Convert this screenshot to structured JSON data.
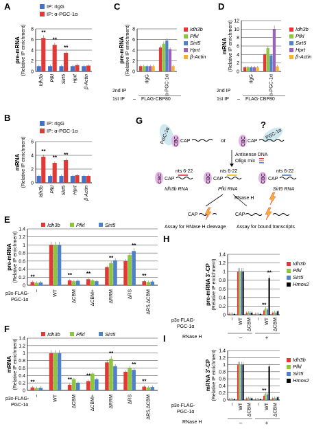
{
  "colors": {
    "rIgG": "#4472c4",
    "PGC": "#e03a36",
    "Idh3b": "#e03a36",
    "Pfkl": "#8cc63f",
    "Sirt5": "#4f81c7",
    "Hprt": "#9b63b5",
    "bActin": "#f2b133",
    "Hmox2": "#000000"
  },
  "legends": {
    "ab": [
      "IP: rIgG",
      "IP: α-PGC-1α"
    ],
    "ef": [
      "Idh3b",
      "Pfkl",
      "Sirt5"
    ],
    "cd": [
      "Idh3b",
      "Pfkl",
      "Sirt5",
      "Hprt",
      "β-Actin"
    ],
    "hi": [
      "Idh3b",
      "Pfkl",
      "Sirt5",
      "Hmox2"
    ]
  },
  "labels": {
    "ab_genes": [
      "Idh3b",
      "Pfkl",
      "Sirt5",
      "Hprt",
      "β-Actin"
    ],
    "p3x": "p3x-FLAG-",
    "pgc": "PGC-1α",
    "ef_conditions": [
      "–",
      "WT",
      "ΔCBM",
      "ΔCBM+",
      "ΔRRM",
      "ΔRS",
      "ΔRS,ΔCBM"
    ],
    "hi_conditions": [
      "–",
      "WT",
      "ΔCBM",
      "–",
      "WT",
      "ΔCBM"
    ],
    "rnaseh": "RNase H",
    "rnaseh_signs": [
      "–",
      "+"
    ],
    "second_ip": "2nd IP",
    "first_ip": "1st IP",
    "rigg": "rIgG",
    "apgc": "α-PGC-1α",
    "dash": "–",
    "flag": "FLAG-CBP80"
  },
  "diagram": {
    "letter": "G",
    "pgc": "PGC-1α",
    "cbc": "CBC",
    "cap": "CAP",
    "or": "or",
    "q": "?",
    "antisense": "Antisense DNA",
    "oligo": "Oligo mix",
    "nts": "nts 6-22",
    "rna1": "Idh3b RNA",
    "rna2": "Pfkl RNA",
    "rna3": "Sirt5 RNA",
    "rnaseh": "RNase H",
    "assay1": "Assay for RNase H cleavage",
    "assay2": "Assay for bound transcripts"
  },
  "chart_data": [
    {
      "panel": "A",
      "type": "bar",
      "ylabel": "pre-mRNA",
      "ylabel2": "(Relative IP enrichment)",
      "ylim": [
        0,
        8
      ],
      "yticks": [
        0,
        2,
        4,
        6,
        8
      ],
      "categories": [
        "Idh3b",
        "Pfkl",
        "Sirt5",
        "Hprt",
        "β-Actin"
      ],
      "series": [
        {
          "name": "IP: rIgG",
          "values": [
            1,
            1,
            1,
            1,
            1
          ]
        },
        {
          "name": "IP: α-PGC-1α",
          "values": [
            6.3,
            5.0,
            3.5,
            1.2,
            1.1
          ]
        }
      ],
      "annotations": [
        "**",
        "**",
        "**"
      ]
    },
    {
      "panel": "B",
      "type": "bar",
      "ylabel": "mRNA",
      "ylabel2": "(Relative IP enrichment)",
      "ylim": [
        0,
        6
      ],
      "yticks": [
        0,
        2,
        4,
        6
      ],
      "categories": [
        "Idh3b",
        "Pfkl",
        "Sirt5",
        "Hprt",
        "β-Actin"
      ],
      "series": [
        {
          "name": "IP: rIgG",
          "values": [
            1,
            1,
            1,
            1,
            1
          ]
        },
        {
          "name": "IP: α-PGC-1α",
          "values": [
            3.8,
            2.9,
            3.3,
            1.1,
            1.0
          ]
        }
      ],
      "annotations": [
        "**",
        "**",
        "**"
      ]
    },
    {
      "panel": "C",
      "type": "bar",
      "ylabel": "pre-mRNA",
      "ylabel2": "(Relative IP enrichment)",
      "ylim": [
        0,
        8
      ],
      "yticks": [
        0,
        2,
        4,
        6,
        8
      ],
      "categories": [
        "rIgG",
        "α-PGC-1α"
      ],
      "series": [
        {
          "name": "Idh3b",
          "values": [
            1,
            4.5
          ]
        },
        {
          "name": "Pfkl",
          "values": [
            1,
            5.2
          ]
        },
        {
          "name": "Sirt5",
          "values": [
            1,
            5.8
          ]
        },
        {
          "name": "Hprt",
          "values": [
            1,
            4.2
          ]
        },
        {
          "name": "β-Actin",
          "values": [
            1,
            1.0
          ]
        }
      ]
    },
    {
      "panel": "D",
      "type": "bar",
      "ylabel": "mRNA",
      "ylabel2": "(Relative IP enrichment)",
      "ylim": [
        0,
        12
      ],
      "yticks": [
        0,
        2,
        4,
        6,
        8,
        10,
        12
      ],
      "categories": [
        "rIgG",
        "α-PGC-1α"
      ],
      "series": [
        {
          "name": "Idh3b",
          "values": [
            1,
            4.0
          ]
        },
        {
          "name": "Pfkl",
          "values": [
            1,
            5.5
          ]
        },
        {
          "name": "Sirt5",
          "values": [
            1,
            3.8
          ]
        },
        {
          "name": "Hprt",
          "values": [
            1,
            10.0
          ]
        },
        {
          "name": "β-Actin",
          "values": [
            1,
            1.2
          ]
        }
      ]
    },
    {
      "panel": "E",
      "type": "bar",
      "ylabel": "pre-mRNA",
      "ylabel2": "(Relative IP enrichment)",
      "ylim": [
        0,
        1.4
      ],
      "yticks": [
        0,
        0.2,
        0.4,
        0.6,
        0.8,
        1,
        1.2,
        1.4
      ],
      "categories": [
        "–",
        "WT",
        "ΔCBM",
        "ΔCBM+",
        "ΔRRM",
        "ΔRS",
        "ΔRS,ΔCBM"
      ],
      "series": [
        {
          "name": "Idh3b",
          "values": [
            0.08,
            1,
            0.12,
            0.15,
            0.45,
            0.6,
            0.1
          ]
        },
        {
          "name": "Pfkl",
          "values": [
            0.06,
            1,
            0.1,
            0.12,
            0.55,
            0.75,
            0.08
          ]
        },
        {
          "name": "Sirt5",
          "values": [
            0.07,
            1,
            0.11,
            0.1,
            0.62,
            0.85,
            0.09
          ]
        }
      ]
    },
    {
      "panel": "F",
      "type": "bar",
      "ylabel": "mRNA",
      "ylabel2": "(Relative IP enrichment)",
      "ylim": [
        0,
        1.4
      ],
      "yticks": [
        0,
        0.2,
        0.4,
        0.6,
        0.8,
        1,
        1.2,
        1.4
      ],
      "categories": [
        "–",
        "WT",
        "ΔCBM",
        "ΔCBM+",
        "ΔRRM",
        "ΔRS",
        "ΔRS,ΔCBM"
      ],
      "series": [
        {
          "name": "Idh3b",
          "values": [
            0.08,
            1,
            0.15,
            0.25,
            0.75,
            0.5,
            0.1
          ]
        },
        {
          "name": "Pfkl",
          "values": [
            0.06,
            1,
            0.3,
            0.45,
            0.85,
            0.6,
            0.08
          ]
        },
        {
          "name": "Sirt5",
          "values": [
            0.07,
            1,
            0.2,
            0.3,
            0.65,
            0.55,
            0.09
          ]
        }
      ]
    },
    {
      "panel": "H",
      "type": "bar",
      "ylabel": "pre-mRNA 3′-CP",
      "ylabel2": "(Relative IP enrichment)",
      "ylim": [
        0,
        1.4
      ],
      "yticks": [
        0,
        0.2,
        0.4,
        0.6,
        0.8,
        1,
        1.2,
        1.4
      ],
      "categories": [
        "–",
        "WT",
        "ΔCBM",
        "–",
        "WT",
        "ΔCBM"
      ],
      "series": [
        {
          "name": "Idh3b",
          "values": [
            0.02,
            1,
            0.05,
            0.02,
            0.1,
            0.05
          ]
        },
        {
          "name": "Pfkl",
          "values": [
            0.02,
            1,
            0.05,
            0.02,
            0.15,
            0.06
          ]
        },
        {
          "name": "Sirt5",
          "values": [
            0.02,
            1,
            0.05,
            0.02,
            0.12,
            0.05
          ]
        },
        {
          "name": "Hmox2",
          "values": [
            0.02,
            1,
            0.05,
            0.02,
            0.85,
            0.08
          ]
        }
      ]
    },
    {
      "panel": "I",
      "type": "bar",
      "ylabel": "mRNA 3′-CP",
      "ylabel2": "(Relative IP enrichment)",
      "ylim": [
        0,
        1.4
      ],
      "yticks": [
        0,
        0.2,
        0.4,
        0.6,
        0.8,
        1,
        1.2,
        1.4
      ],
      "categories": [
        "–",
        "WT",
        "ΔCBM",
        "–",
        "WT",
        "ΔCBM"
      ],
      "series": [
        {
          "name": "Idh3b",
          "values": [
            0.02,
            1,
            0.05,
            0.02,
            0.12,
            0.05
          ]
        },
        {
          "name": "Pfkl",
          "values": [
            0.02,
            1,
            0.05,
            0.02,
            0.18,
            0.06
          ]
        },
        {
          "name": "Sirt5",
          "values": [
            0.02,
            1,
            0.05,
            0.02,
            0.15,
            0.05
          ]
        },
        {
          "name": "Hmox2",
          "values": [
            0.02,
            1,
            0.05,
            0.02,
            0.95,
            0.08
          ]
        }
      ]
    }
  ]
}
